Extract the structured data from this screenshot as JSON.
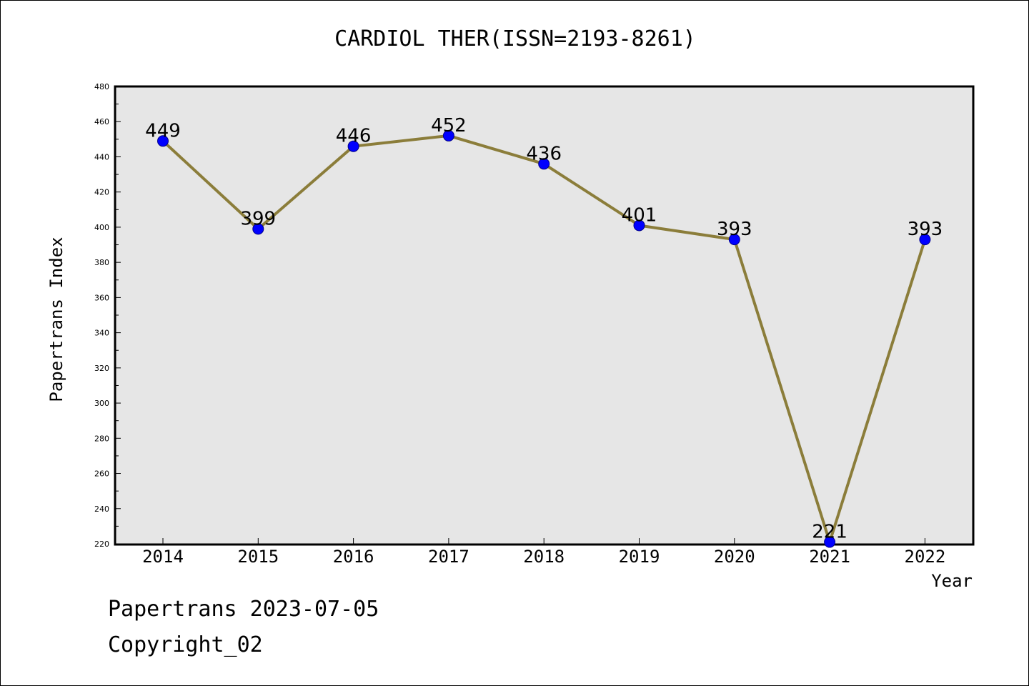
{
  "chart_data": {
    "type": "line",
    "title": "CARDIOL THER(ISSN=2193-8261)",
    "xlabel": "Year",
    "ylabel": "Papertrans Index",
    "categories": [
      "2014",
      "2015",
      "2016",
      "2017",
      "2018",
      "2019",
      "2020",
      "2021",
      "2022"
    ],
    "values": [
      449,
      399,
      446,
      452,
      436,
      401,
      393,
      221,
      393
    ],
    "data_labels": [
      "449",
      "399",
      "446",
      "452",
      "436",
      "401",
      "393",
      "221",
      "393"
    ],
    "ylim": [
      220,
      480
    ],
    "y_ticks": [
      220,
      240,
      260,
      280,
      300,
      320,
      340,
      360,
      380,
      400,
      420,
      440,
      460,
      480
    ],
    "y_tick_labels": [
      "220",
      "240",
      "260",
      "280",
      "300",
      "320",
      "340",
      "360",
      "380",
      "400",
      "420",
      "440",
      "460",
      "480"
    ],
    "grid": false,
    "colors": {
      "plot_background": "#e6e6e6",
      "line": "#8b7d3a",
      "marker": "#0000ff"
    }
  },
  "footer": {
    "line1": "Papertrans 2023-07-05",
    "line2": "Copyright_02"
  }
}
